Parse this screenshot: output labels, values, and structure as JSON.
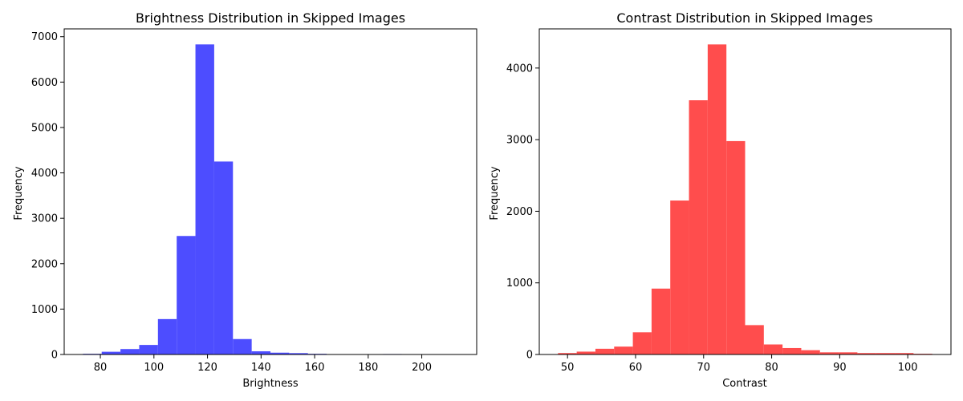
{
  "chart_data": [
    {
      "type": "bar",
      "title": "Brightness Distribution in Skipped Images",
      "xlabel": "Brightness",
      "ylabel": "Frequency",
      "color": "#4d4dff",
      "bin_edges": [
        73.5,
        80.5,
        87.5,
        94.5,
        101.5,
        108.5,
        115.5,
        122.5,
        129.5,
        136.5,
        143.5,
        150.5,
        157.5,
        164.5,
        171.5,
        178.5,
        185.5,
        192.5,
        199.5,
        206.5,
        213.5
      ],
      "values": [
        15,
        60,
        120,
        210,
        780,
        2610,
        6830,
        4250,
        340,
        70,
        40,
        30,
        15,
        5,
        5,
        5,
        10,
        5,
        0,
        5
      ],
      "xlim": [
        66.5,
        220.5
      ],
      "ylim": [
        0,
        7172
      ],
      "xticks": [
        80,
        100,
        120,
        140,
        160,
        180,
        200
      ],
      "yticks": [
        0,
        1000,
        2000,
        3000,
        4000,
        5000,
        6000,
        7000
      ],
      "grid": false
    },
    {
      "type": "bar",
      "title": "Contrast Distribution in Skipped Images",
      "xlabel": "Contrast",
      "ylabel": "Frequency",
      "color": "#ff4d4d",
      "bin_edges": [
        48.6,
        51.35,
        54.1,
        56.85,
        59.6,
        62.35,
        65.1,
        67.85,
        70.6,
        73.35,
        76.1,
        78.85,
        81.6,
        84.35,
        87.1,
        89.85,
        92.6,
        95.35,
        98.1,
        100.85,
        103.6
      ],
      "values": [
        20,
        40,
        80,
        110,
        310,
        920,
        2150,
        3550,
        4330,
        2980,
        410,
        140,
        90,
        60,
        30,
        30,
        20,
        20,
        20,
        10
      ],
      "xlim": [
        45.85,
        106.35
      ],
      "ylim": [
        0,
        4547
      ],
      "xticks": [
        50,
        60,
        70,
        80,
        90,
        100
      ],
      "yticks": [
        0,
        1000,
        2000,
        3000,
        4000
      ],
      "grid": false
    }
  ]
}
